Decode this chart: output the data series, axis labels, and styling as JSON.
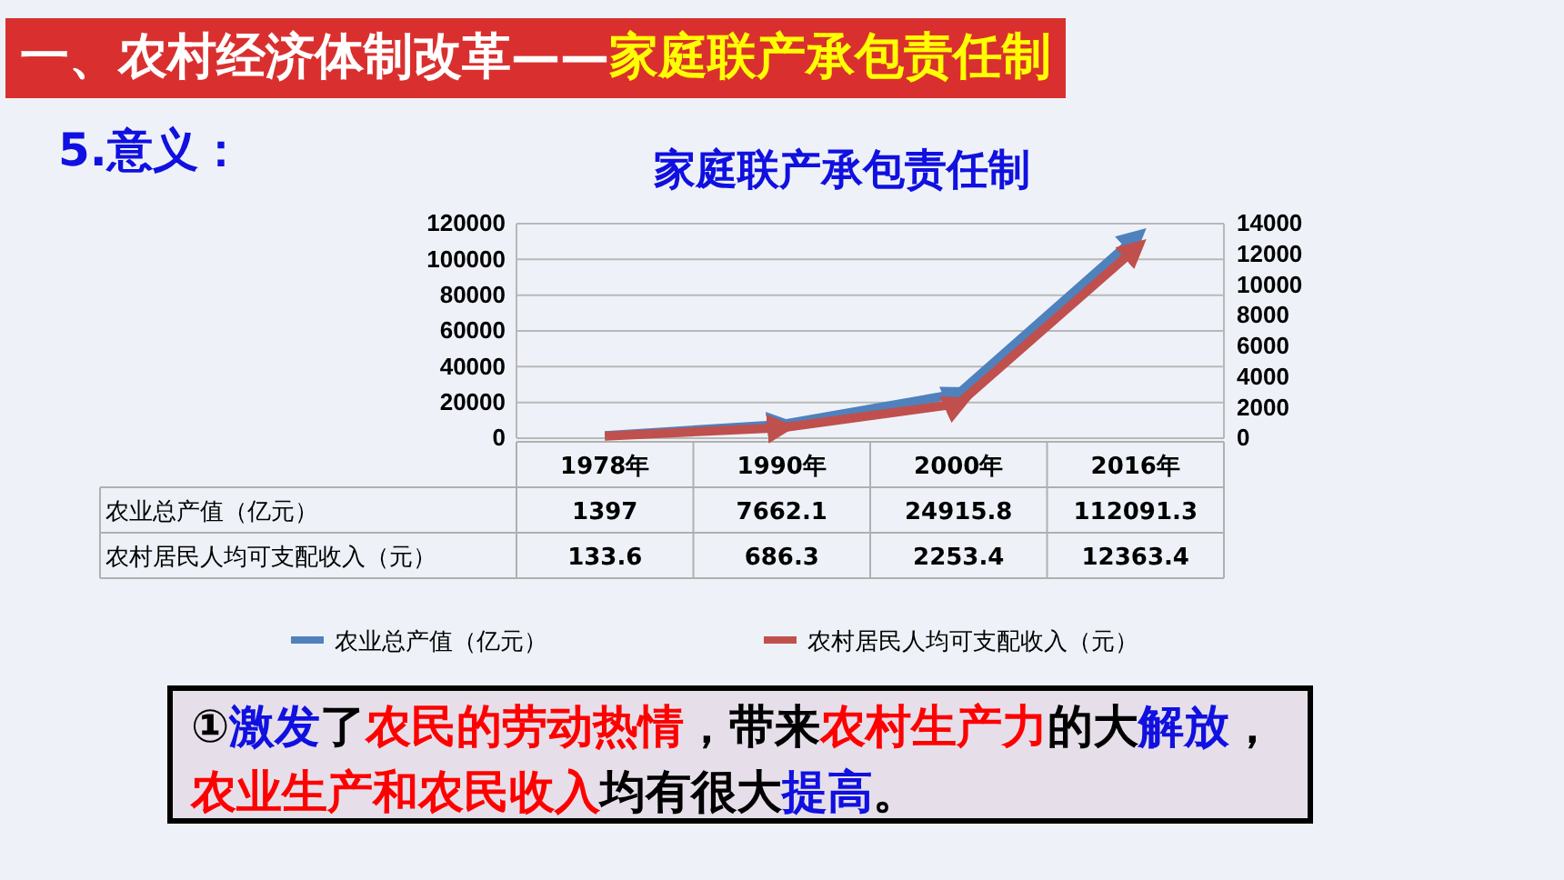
{
  "chart_data": {
    "type": "line",
    "title": "家庭联产承包责任制",
    "categories": [
      "1978年",
      "1990年",
      "2000年",
      "2016年"
    ],
    "series": [
      {
        "name": "农业总产值（亿元）",
        "color": "#4f81bd",
        "values": [
          1397,
          7662.1,
          24915.8,
          112091.3
        ]
      },
      {
        "name": "农村居民人均可支配收入（元）",
        "color": "#c0504d",
        "values": [
          133.6,
          686.3,
          2253.4,
          12363.4
        ],
        "axis": "y2"
      }
    ],
    "ylim": [
      0,
      120000
    ],
    "yticks": [
      0,
      20000,
      40000,
      60000,
      80000,
      100000,
      120000
    ],
    "y2lim": [
      0,
      14000
    ],
    "y2ticks": [
      0,
      2000,
      4000,
      6000,
      8000,
      10000,
      12000,
      14000
    ],
    "grid": "y",
    "legend": "bottom",
    "data_labels": true,
    "annotations": [
      "一、农村经济体制改革——",
      "家庭联产承包责任制",
      "5.意义：",
      "①",
      "激发",
      "了",
      "农民的劳动热情",
      "，带来",
      "农村生产力",
      "的大",
      "解放",
      "，",
      "农业生产和农民收入",
      "均有很大",
      "提高",
      "。"
    ]
  }
}
